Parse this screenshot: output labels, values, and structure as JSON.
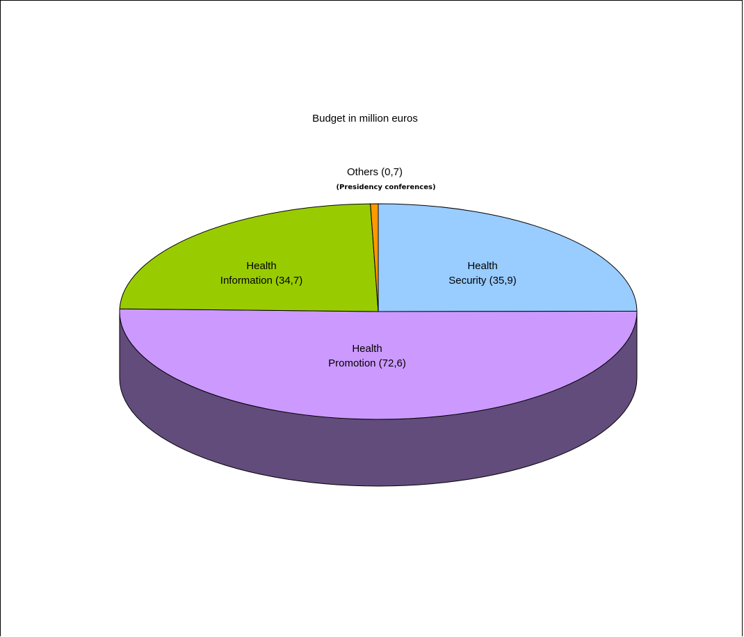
{
  "chart_data": {
    "type": "pie",
    "title": "Budget in million euros",
    "categories": [
      "Health Security",
      "Health Promotion",
      "Health Information",
      "Others"
    ],
    "values": [
      35.9,
      72.6,
      34.7,
      0.7
    ],
    "slices": [
      {
        "name": "Health Security",
        "value": 35.9,
        "label_lines": [
          "Health",
          "Security  (35,9)"
        ],
        "color": "#99ccff",
        "side_color": "#6f95bb"
      },
      {
        "name": "Health Promotion",
        "value": 72.6,
        "label_lines": [
          "Health",
          "Promotion (72,6)"
        ],
        "color": "#cc99ff",
        "side_color": "#624c7c"
      },
      {
        "name": "Health Information",
        "value": 34.7,
        "label_lines": [
          "Health",
          "Information (34,7)"
        ],
        "color": "#99cc00",
        "side_color": "#6d9200"
      },
      {
        "name": "Others",
        "value": 0.7,
        "label_lines": [
          "Others (0,7)"
        ],
        "sublabel": "(Presidency conferences)",
        "color": "#ff9900",
        "side_color": "#b36b00"
      }
    ],
    "legend": "none",
    "style": "3d"
  }
}
